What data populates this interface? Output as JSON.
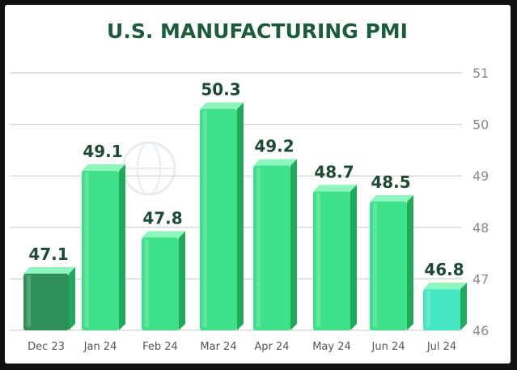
{
  "chart_data": {
    "type": "bar",
    "title": "U.S. MANUFACTURING PMI",
    "categories": [
      "Dec 23",
      "Jan 24",
      "Feb 24",
      "Mar 24",
      "Apr 24",
      "May 24",
      "Jun 24",
      "Jul 24"
    ],
    "values": [
      47.1,
      49.1,
      47.8,
      50.3,
      49.2,
      48.7,
      48.5,
      46.8
    ],
    "data_labels": [
      "47.1",
      "49.1",
      "47.8",
      "50.3",
      "49.2",
      "48.7",
      "48.5",
      "46.8"
    ],
    "ylim": [
      46,
      51
    ],
    "yticks": [
      "46",
      "47",
      "48",
      "49",
      "50",
      "51"
    ],
    "y_axis_position": "right",
    "grid": true,
    "legend": "none",
    "colors": {
      "bar_front": "#3fe08a",
      "bar_side": "#22a95c",
      "bar_top": "#8ef5bd",
      "first_bar_front": "#2e8f58",
      "last_bar_front": "#44e6c2",
      "title": "#1c5c3c",
      "data_label": "#1e4a34",
      "gridline": "#c9c9c9"
    }
  }
}
